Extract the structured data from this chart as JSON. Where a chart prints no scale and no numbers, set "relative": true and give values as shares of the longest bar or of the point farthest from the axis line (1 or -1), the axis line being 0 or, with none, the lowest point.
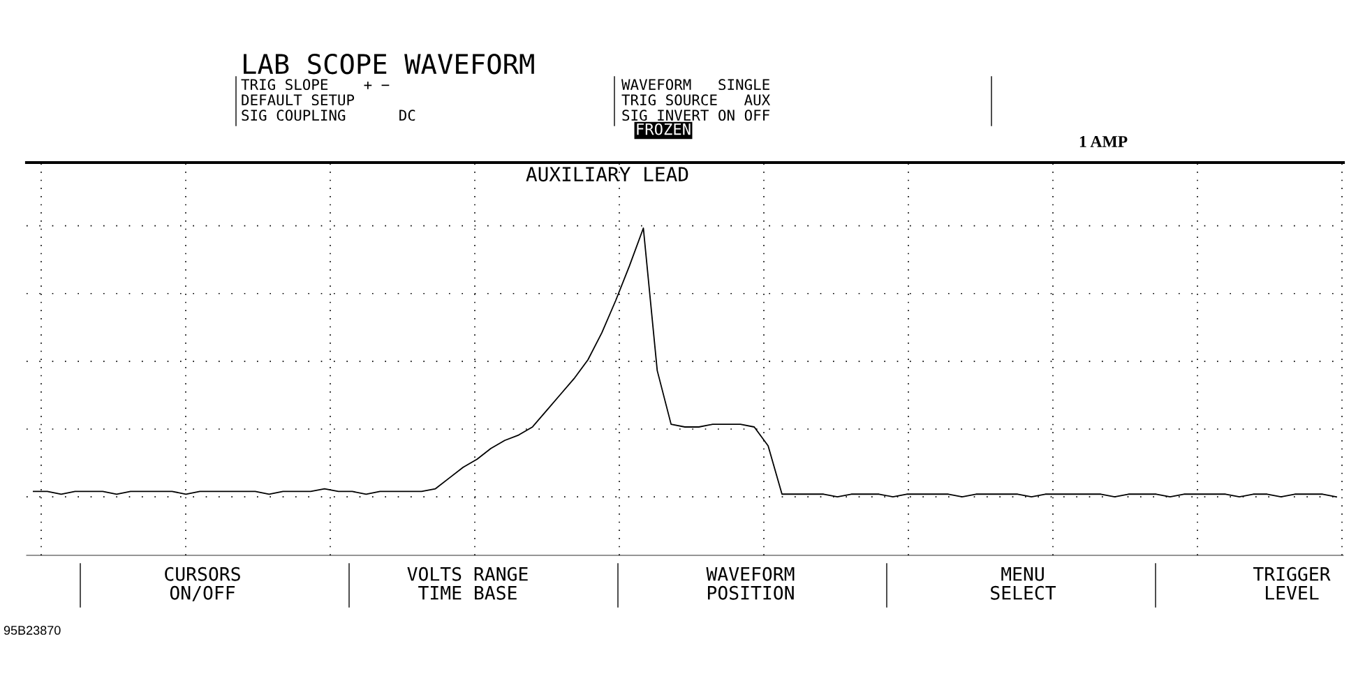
{
  "chart_data": {
    "type": "line",
    "title": "LAB SCOPE WAVEFORM",
    "relative": true,
    "grid": true,
    "marker": "none",
    "line_style": "solid",
    "categories": [
      null,
      null,
      null,
      null,
      null,
      null,
      null,
      null,
      null,
      null,
      null,
      null,
      null,
      null,
      null,
      null,
      null,
      null,
      null,
      null,
      null,
      null,
      null,
      null,
      null,
      null,
      null,
      null,
      null,
      null,
      null,
      null,
      null,
      null,
      null,
      null,
      null,
      null,
      null,
      null,
      null,
      null,
      null,
      null,
      null,
      null,
      null,
      null,
      null,
      null,
      null,
      null,
      null,
      null,
      null,
      null,
      null,
      null,
      null,
      null,
      null,
      null,
      null,
      null,
      null,
      null,
      null,
      null,
      null,
      null,
      null,
      null,
      null,
      null,
      null,
      null,
      null,
      null,
      null,
      null,
      null,
      null,
      null,
      null,
      null,
      null,
      null,
      null,
      null,
      null,
      null,
      null,
      null,
      null,
      null
    ],
    "series": [
      {
        "color": "#000000",
        "values": [
          0.02,
          0.02,
          0.01,
          0.02,
          0.02,
          0.02,
          0.01,
          0.02,
          0.02,
          0.02,
          0.02,
          0.01,
          0.02,
          0.02,
          0.02,
          0.02,
          0.02,
          0.01,
          0.02,
          0.02,
          0.02,
          0.03,
          0.02,
          0.02,
          0.01,
          0.02,
          0.02,
          0.02,
          0.02,
          0.03,
          0.07,
          0.11,
          0.14,
          0.18,
          0.21,
          0.23,
          0.26,
          0.32,
          0.38,
          0.44,
          0.51,
          0.61,
          0.73,
          0.86,
          1.0,
          0.47,
          0.27,
          0.26,
          0.26,
          0.27,
          0.27,
          0.27,
          0.26,
          0.19,
          0.01,
          0.01,
          0.01,
          0.01,
          0.0,
          0.01,
          0.01,
          0.01,
          0.0,
          0.01,
          0.01,
          0.01,
          0.01,
          0.0,
          0.01,
          0.01,
          0.01,
          0.01,
          0.0,
          0.01,
          0.01,
          0.01,
          0.01,
          0.01,
          0.0,
          0.01,
          0.01,
          0.01,
          0.0,
          0.01,
          0.01,
          0.01,
          0.01,
          0.0,
          0.01,
          0.01,
          0.0,
          0.01,
          0.01,
          0.01,
          0.0
        ]
      }
    ],
    "annotations": [
      "TRIG SLOPE    + −",
      "DEFAULT SETUP",
      "SIG COUPLING      DC",
      "WAVEFORM   SINGLE",
      "TRIG SOURCE   AUX",
      "SIG INVERT ON OFF",
      "FROZEN",
      "1 AMP",
      "AUXILIARY LEAD",
      "CURSORS",
      "ON/OFF",
      "VOLTS RANGE",
      "TIME BASE",
      "WAVEFORM",
      "POSITION",
      "MENU",
      "SELECT",
      "TRIGGER",
      "LEVEL",
      "95B23870"
    ]
  }
}
